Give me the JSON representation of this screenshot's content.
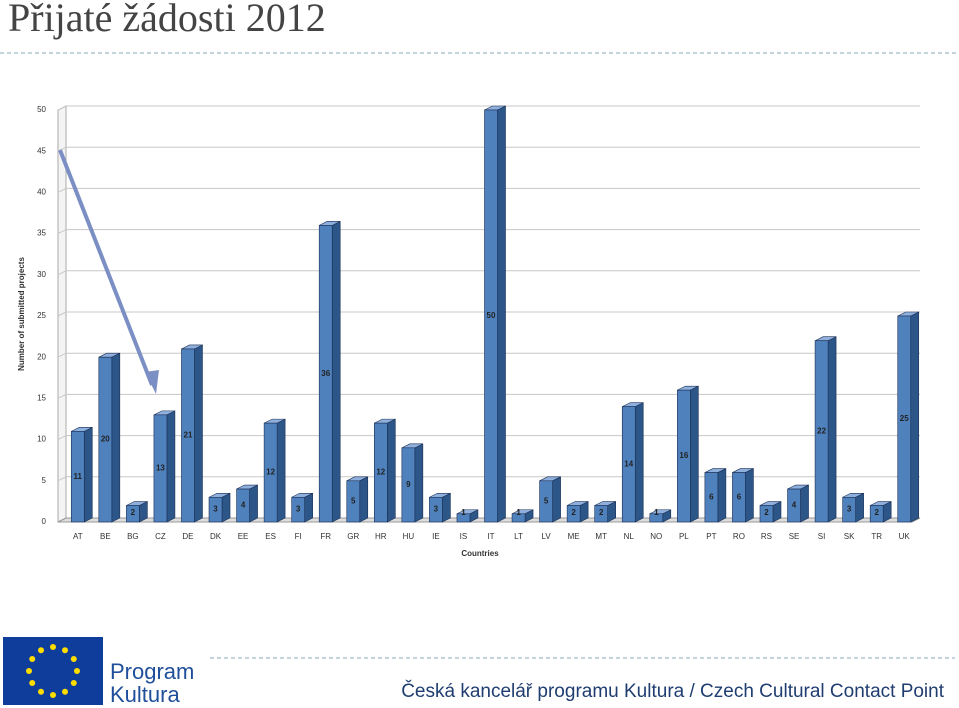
{
  "title": "Přijaté žádosti 2012",
  "footer": {
    "logo_line1": "Program",
    "logo_line2": "Kultura",
    "office": "Česká kancelář programu Kultura / Czech Cultural Contact Point"
  },
  "chart_data": {
    "type": "bar3d",
    "y_label": "Number of submitted projects",
    "x_label": "Countries",
    "categories": [
      "AT",
      "BE",
      "BG",
      "CZ",
      "DE",
      "DK",
      "EE",
      "ES",
      "FI",
      "FR",
      "GR",
      "HR",
      "HU",
      "IE",
      "IS",
      "IT",
      "LT",
      "LV",
      "ME",
      "MT",
      "NL",
      "NO",
      "PL",
      "PT",
      "RO",
      "RS",
      "SE",
      "SI",
      "SK",
      "TR",
      "UK"
    ],
    "values": [
      11,
      20,
      2,
      13,
      21,
      3,
      4,
      12,
      3,
      36,
      5,
      12,
      9,
      3,
      1,
      50,
      1,
      5,
      2,
      2,
      14,
      1,
      16,
      6,
      6,
      2,
      4,
      22,
      3,
      2,
      25
    ],
    "color": "#4f81bd",
    "ylim": [
      0,
      50
    ],
    "yticks": [
      0,
      5,
      10,
      15,
      20,
      25,
      30,
      35,
      40,
      45,
      50
    ],
    "grid": true
  }
}
